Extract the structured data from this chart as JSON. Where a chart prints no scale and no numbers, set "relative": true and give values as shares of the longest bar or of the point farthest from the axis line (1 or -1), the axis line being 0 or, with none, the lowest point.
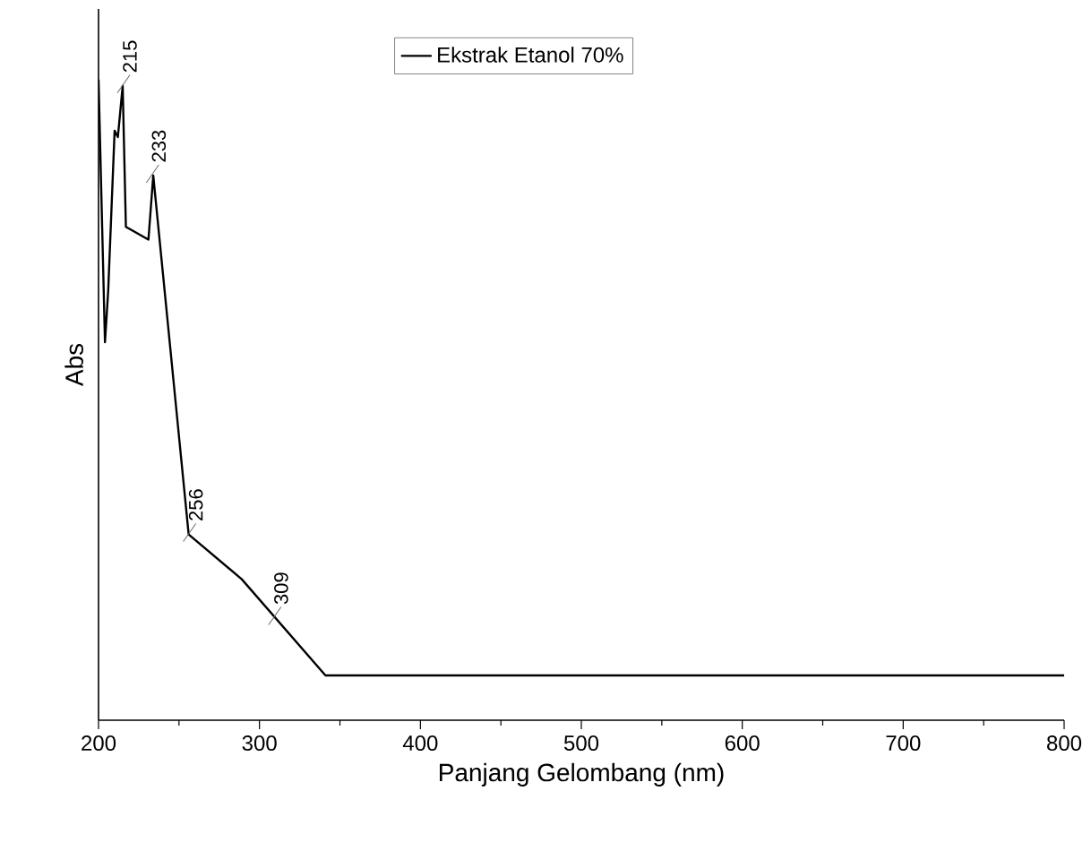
{
  "chart_data": {
    "type": "line",
    "relative": true,
    "xlabel": "Panjang Gelombang (nm)",
    "ylabel": "Abs",
    "xlim": [
      200,
      800
    ],
    "xticks": [
      200,
      300,
      400,
      500,
      600,
      700,
      800
    ],
    "legend": "top",
    "marker": "none",
    "line_style": "solid",
    "grid": false,
    "series": [
      {
        "name": "Ekstrak Etanol 70%",
        "color": "#000000",
        "x": [
          200,
          204,
          206,
          210,
          212,
          215,
          217,
          231,
          234,
          256,
          289,
          341,
          800
        ],
        "values": [
          1,
          0.59,
          0.67,
          0.92,
          0.91,
          0.99,
          0.77,
          0.75,
          0.85,
          0.29,
          0.22,
          0.07,
          0.07
        ]
      }
    ],
    "annotations": [
      {
        "text": "215",
        "x": 215,
        "y": 0.99
      },
      {
        "text": "233",
        "x": 233,
        "y": 0.85
      },
      {
        "text": "256",
        "x": 256,
        "y": 0.29
      },
      {
        "text": "309",
        "x": 309,
        "y": 0.16
      }
    ]
  }
}
